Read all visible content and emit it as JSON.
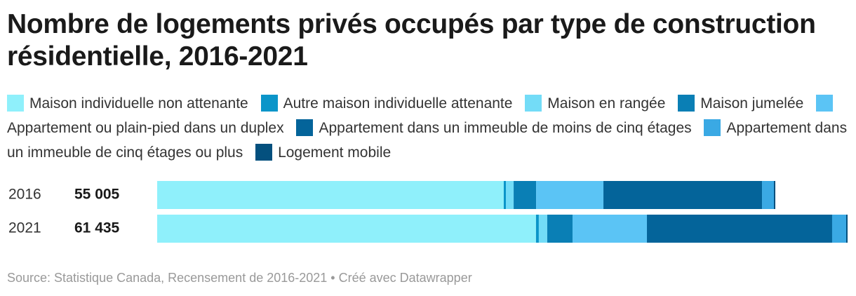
{
  "chart_data": {
    "type": "stacked_bar_horizontal",
    "title": "Nombre de logements privés occupés par type de construction résidentielle, 2016-2021",
    "categories": [
      "2016",
      "2021"
    ],
    "totals": [
      55005,
      61435
    ],
    "totals_labels": [
      "55 005",
      "61 435"
    ],
    "series": [
      {
        "name": "Maison individuelle non attenante",
        "color": "#8ff0fb",
        "values": [
          30840,
          33710
        ]
      },
      {
        "name": "Autre maison individuelle attenante",
        "color": "#0b95c9",
        "values": [
          190,
          250
        ]
      },
      {
        "name": "Maison en rangée",
        "color": "#73dcf7",
        "values": [
          690,
          750
        ]
      },
      {
        "name": "Maison jumelée",
        "color": "#0a7fb5",
        "values": [
          2000,
          2250
        ]
      },
      {
        "name": "Appartement ou plain-pied dans un duplex",
        "color": "#5bc4f5",
        "values": [
          5990,
          6620
        ]
      },
      {
        "name": "Appartement dans un immeuble de moins de cinq étages",
        "color": "#04649a",
        "values": [
          14110,
          16480
        ]
      },
      {
        "name": "Appartement dans un immeuble de cinq étages ou plus",
        "color": "#3aa9e4",
        "values": [
          1060,
          1250
        ]
      },
      {
        "name": "Logement mobile",
        "color": "#04507e",
        "values": [
          125,
          125
        ]
      }
    ],
    "source": "Source: Statistique Canada, Recensement de 2016-2021 • Créé avec Datawrapper"
  }
}
